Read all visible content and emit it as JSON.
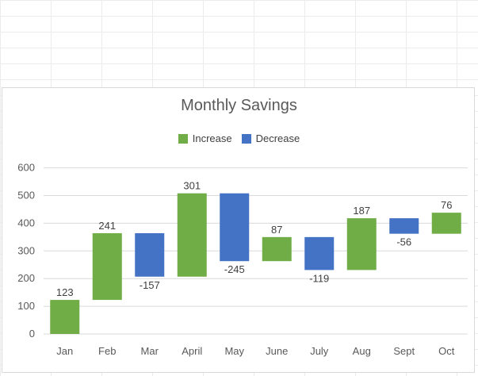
{
  "chart_data": {
    "type": "bar",
    "title": "Monthly Savings",
    "categories": [
      "Jan",
      "Feb",
      "Mar",
      "April",
      "May",
      "June",
      "July",
      "Aug",
      "Sept",
      "Oct"
    ],
    "values": [
      123,
      241,
      -157,
      301,
      -245,
      87,
      -119,
      187,
      -56,
      76
    ],
    "value_labels": [
      "123",
      "241",
      "-157",
      "301",
      "-245",
      "87",
      "-119",
      "187",
      "-56",
      "76"
    ],
    "legend": [
      {
        "name": "Increase",
        "color": "#70ad47"
      },
      {
        "name": "Decrease",
        "color": "#4472c4"
      }
    ],
    "legend_position": "top",
    "ylim": [
      0,
      600
    ],
    "yticks": [
      "0",
      "100",
      "200",
      "300",
      "400",
      "500",
      "600"
    ],
    "grid": true,
    "xlabel": "",
    "ylabel": ""
  }
}
